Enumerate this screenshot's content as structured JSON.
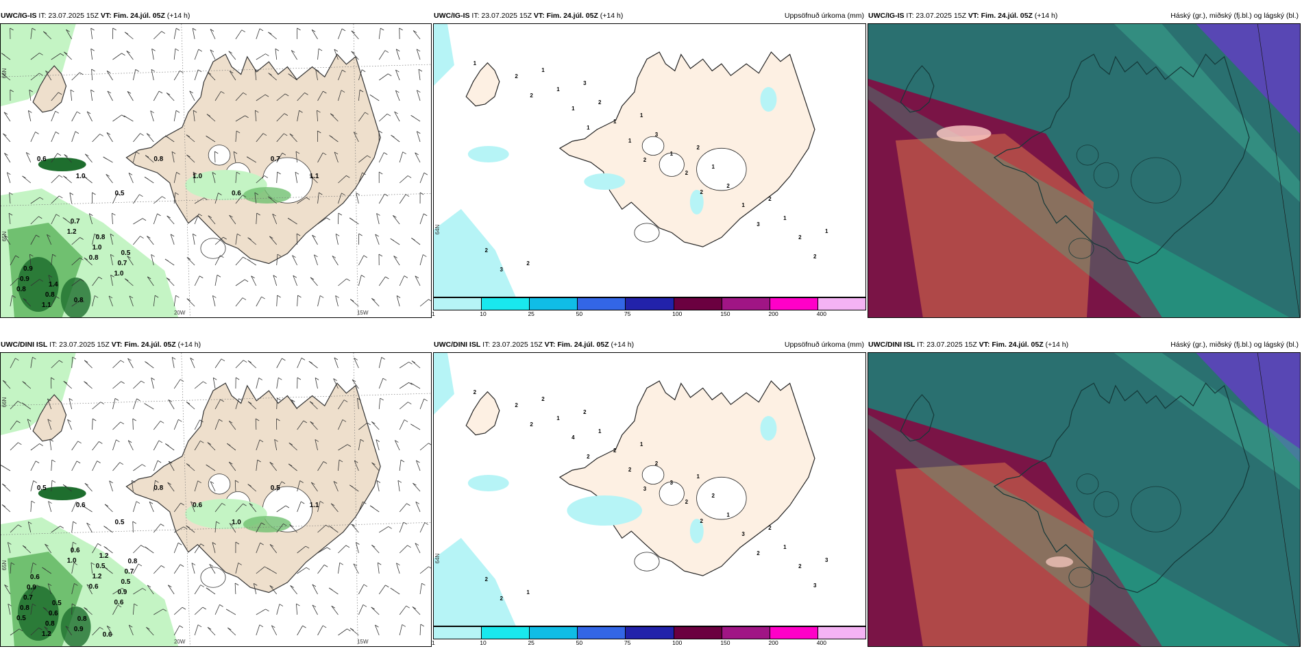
{
  "panels": [
    {
      "model": "UWC/IG-IS",
      "it": "IT: 23.07.2025 15Z",
      "vt": "VT: Fim. 24.júl. 05Z",
      "lead": "(+14 h)",
      "product": ""
    },
    {
      "model": "UWC/IG-IS",
      "it": "IT: 23.07.2025 15Z",
      "vt": "VT: Fim. 24.júl. 05Z",
      "lead": "(+14 h)",
      "product": "Uppsöfnuð úrkoma (mm)"
    },
    {
      "model": "UWC/IG-IS",
      "it": "IT: 23.07.2025 15Z",
      "vt": "VT: Fim. 24.júl. 05Z",
      "lead": "(+14 h)",
      "product": "Háský (gr.), miðský (fj.bl.) og lágský (bl.)"
    },
    {
      "model": "UWC/DINI ISL",
      "it": "IT: 23.07.2025 15Z",
      "vt": "VT: Fim. 24.júl. 05Z",
      "lead": "(+14 h)",
      "product": ""
    },
    {
      "model": "UWC/DINI ISL",
      "it": "IT: 23.07.2025 15Z",
      "vt": "VT: Fim. 24.júl. 05Z",
      "lead": "(+14 h)",
      "product": "Uppsöfnuð úrkoma (mm)"
    },
    {
      "model": "UWC/DINI ISL",
      "it": "IT: 23.07.2025 15Z",
      "vt": "VT: Fim. 24.júl. 05Z",
      "lead": "(+14 h)",
      "product": "Háský (gr.), miðský (fj.bl.) og lágský (bl.)"
    }
  ],
  "axes": {
    "lon_20": "20W",
    "lon_15": "15W",
    "lat_66": "66N",
    "lat_64": "64N",
    "lat_65": "65N"
  },
  "legend": {
    "ticks": [
      "1",
      "10",
      "25",
      "50",
      "75",
      "100",
      "150",
      "200",
      "400"
    ],
    "colors": [
      "#b6f4f6",
      "#19e8ee",
      "#10bde6",
      "#3366e6",
      "#2222aa",
      "#6b0040",
      "#a01585",
      "#ff00c8",
      "#f4b3f4"
    ]
  },
  "colors": {
    "land": "#eedfcc",
    "precip_land": "#fdf0e3",
    "rain_light": "#c4f4c4",
    "rain_mid": "#70c070",
    "rain_heavy": "#1e6e2e",
    "cloud_high": "#7a1446",
    "cloud_mid": "#2a7070",
    "cloud_low": "#6040c0"
  },
  "rain_labels_top": [
    "0.6",
    "1.0",
    "0.5",
    "0.8",
    "1.0",
    "0.6",
    "0.7",
    "1.1",
    "0.8",
    "1.0",
    "0.8",
    "1.1",
    "1.2",
    "1.0",
    "0.7",
    "0.9",
    "0.8",
    "0.7",
    "0.8",
    "0.5",
    "0.9",
    "1.4",
    "0.8"
  ],
  "rain_labels_bottom": [
    "0.5",
    "0.6",
    "0.5",
    "0.8",
    "0.6",
    "1.0",
    "0.5",
    "1.1",
    "0.6",
    "0.6",
    "0.5",
    "1.2",
    "1.0",
    "1.2",
    "0.9",
    "0.8",
    "0.8",
    "0.6",
    "0.5",
    "0.5",
    "0.7",
    "0.6",
    "0.9",
    "1.2",
    "0.7",
    "0.9",
    "0.5",
    "0.8",
    "0.6",
    "0.8",
    "0.6"
  ],
  "precip_labels_top": [
    "1",
    "2",
    "1",
    "2",
    "2",
    "3",
    "2",
    "2",
    "1",
    "1",
    "2",
    "1",
    "2",
    "3",
    "1",
    "1",
    "1",
    "2",
    "1",
    "2",
    "1",
    "2",
    "3",
    "1",
    "2",
    "1",
    "2",
    "3",
    "1",
    "2"
  ],
  "precip_labels_bottom": [
    "2",
    "2",
    "2",
    "3",
    "2",
    "2",
    "3",
    "2",
    "4",
    "2",
    "2",
    "3",
    "2",
    "2",
    "1",
    "2",
    "3",
    "1",
    "1",
    "2",
    "2",
    "1",
    "2",
    "2",
    "2",
    "3",
    "1",
    "2",
    "1",
    "1"
  ]
}
